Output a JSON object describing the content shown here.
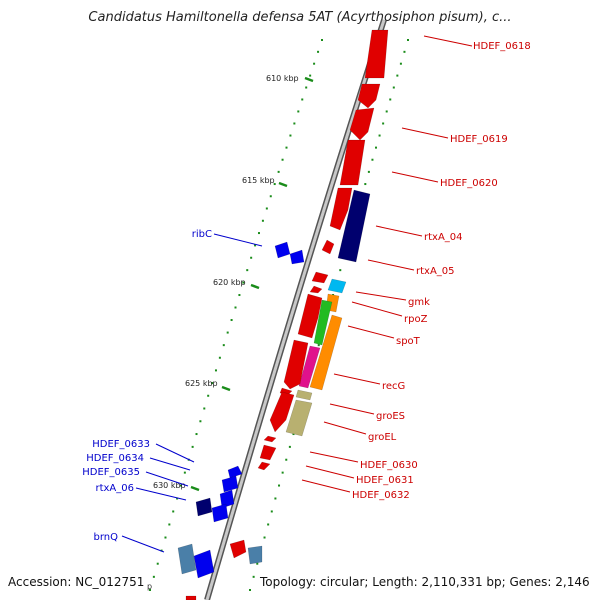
{
  "title": "Candidatus Hamiltonella defensa 5AT (Acyrthosiphon pisum), c...",
  "footer": {
    "accession": "Accession: NC_012751",
    "accession_tail": "p",
    "topology": "Topology: circular; Length: 2,110,331 bp; Genes: 2,146"
  },
  "colors": {
    "backbone": "#8c8c8c",
    "tick": "#1a8c1a",
    "gene_red": "#e00000",
    "gene_blue": "#0000ee",
    "gene_navy": "#00006e",
    "gene_cyan": "#00b8f0",
    "gene_orange": "#ff8c00",
    "gene_green": "#22bb22",
    "gene_magenta": "#e0128c",
    "gene_khaki": "#b8b070",
    "gene_steel": "#4a7fa8",
    "label_red": "#cc0000",
    "label_blue": "#0000cc"
  },
  "scale_labels": [
    "610 kbp",
    "615 kbp",
    "620 kbp",
    "625 kbp",
    "630 kbp"
  ],
  "gene_labels_right": [
    "HDEF_0618",
    "HDEF_0619",
    "HDEF_0620",
    "rtxA_04",
    "rtxA_05",
    "gmk",
    "rpoZ",
    "spoT",
    "recG",
    "groES",
    "groEL",
    "HDEF_0630",
    "HDEF_0631",
    "HDEF_0632"
  ],
  "gene_labels_left": [
    "ribC",
    "HDEF_0633",
    "HDEF_0634",
    "HDEF_0635",
    "rtxA_06",
    "brnQ"
  ]
}
